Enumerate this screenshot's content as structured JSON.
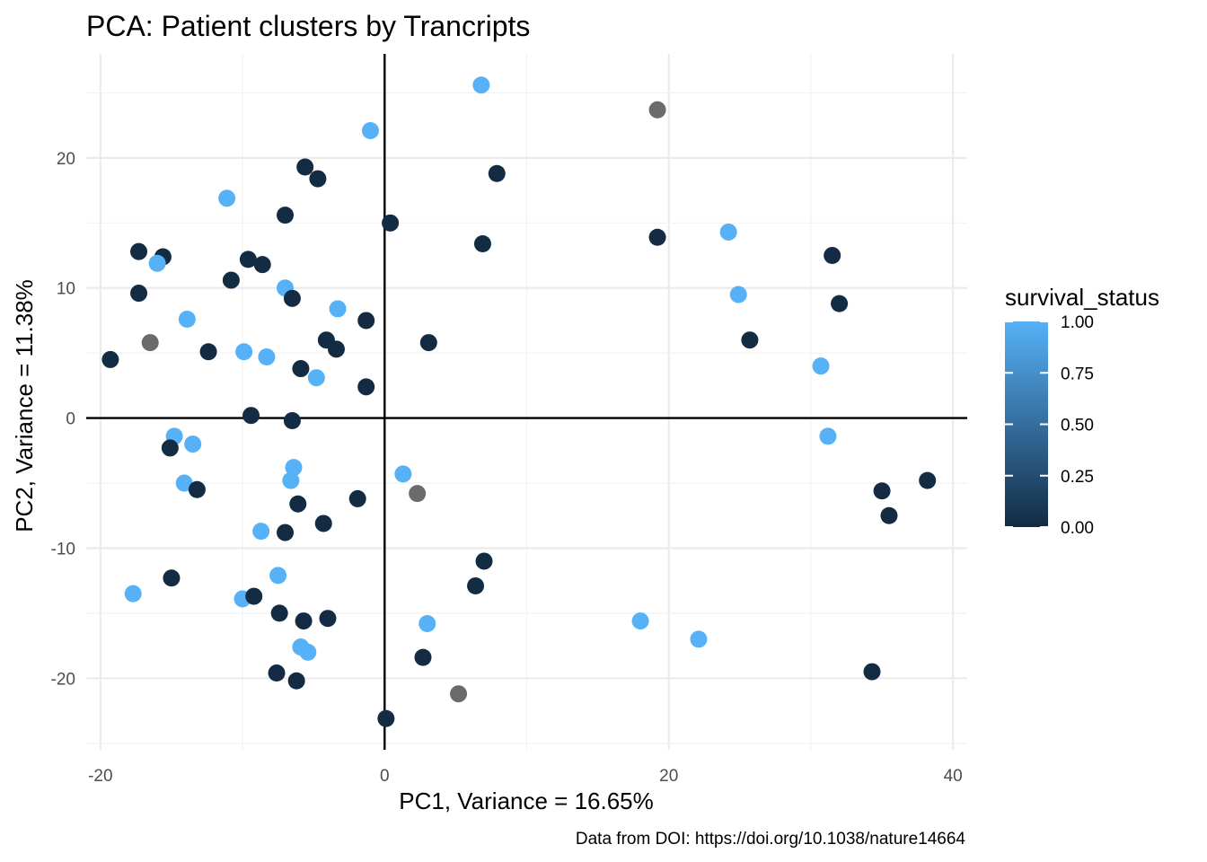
{
  "chart_data": {
    "type": "scatter",
    "title": "PCA: Patient clusters by Trancripts",
    "xlabel": "PC1, Variance = 16.65%",
    "ylabel": "PC2, Variance = 11.38%",
    "caption": "Data from DOI: https://doi.org/10.1038/nature14664",
    "xlim": [
      -21,
      41
    ],
    "ylim": [
      -25.5,
      28
    ],
    "x_ticks": [
      -20,
      0,
      20,
      40
    ],
    "x_tick_labels": [
      "-20",
      "0",
      "20",
      "40"
    ],
    "y_ticks": [
      -20,
      -10,
      0,
      10,
      20
    ],
    "y_tick_labels": [
      "-20",
      "-10",
      "0",
      "10",
      "20"
    ],
    "reference_lines": {
      "x": 0,
      "y": 0
    },
    "grid": true,
    "color_scale": {
      "title": "survival_status",
      "low": "#132b43",
      "high": "#56b1f7",
      "na_color": "#6b6b6b",
      "breaks": [
        0.0,
        0.25,
        0.5,
        0.75,
        1.0
      ],
      "break_labels": [
        "0.00",
        "0.25",
        "0.50",
        "0.75",
        "1.00"
      ],
      "placement": "right"
    },
    "points": [
      {
        "x": 6.8,
        "y": 25.6,
        "status": 1
      },
      {
        "x": 19.2,
        "y": 23.7,
        "status": null
      },
      {
        "x": -1.0,
        "y": 22.1,
        "status": 1
      },
      {
        "x": -5.6,
        "y": 19.3,
        "status": 0
      },
      {
        "x": -4.7,
        "y": 18.4,
        "status": 0
      },
      {
        "x": 7.9,
        "y": 18.8,
        "status": 0
      },
      {
        "x": -11.1,
        "y": 16.9,
        "status": 1
      },
      {
        "x": -7.0,
        "y": 15.6,
        "status": 0
      },
      {
        "x": 0.4,
        "y": 15.0,
        "status": 0
      },
      {
        "x": 6.9,
        "y": 13.4,
        "status": 0
      },
      {
        "x": 19.2,
        "y": 13.9,
        "status": 0
      },
      {
        "x": 24.2,
        "y": 14.3,
        "status": 1
      },
      {
        "x": 31.5,
        "y": 12.5,
        "status": 0
      },
      {
        "x": -17.3,
        "y": 12.8,
        "status": 0
      },
      {
        "x": -15.6,
        "y": 12.4,
        "status": 0
      },
      {
        "x": -16.0,
        "y": 11.9,
        "status": 1
      },
      {
        "x": -9.6,
        "y": 12.2,
        "status": 0
      },
      {
        "x": -8.6,
        "y": 11.8,
        "status": 0
      },
      {
        "x": -10.8,
        "y": 10.6,
        "status": 0
      },
      {
        "x": -7.0,
        "y": 10.0,
        "status": 1
      },
      {
        "x": -6.5,
        "y": 9.2,
        "status": 0
      },
      {
        "x": -17.3,
        "y": 9.6,
        "status": 0
      },
      {
        "x": 24.9,
        "y": 9.5,
        "status": 1
      },
      {
        "x": 32.0,
        "y": 8.8,
        "status": 0
      },
      {
        "x": -3.3,
        "y": 8.4,
        "status": 1
      },
      {
        "x": -1.3,
        "y": 7.5,
        "status": 0
      },
      {
        "x": -13.9,
        "y": 7.6,
        "status": 1
      },
      {
        "x": -16.5,
        "y": 5.8,
        "status": null
      },
      {
        "x": -12.4,
        "y": 5.1,
        "status": 0
      },
      {
        "x": -9.9,
        "y": 5.1,
        "status": 1
      },
      {
        "x": -8.3,
        "y": 4.7,
        "status": 1
      },
      {
        "x": -4.1,
        "y": 6.0,
        "status": 0
      },
      {
        "x": -3.4,
        "y": 5.3,
        "status": 0
      },
      {
        "x": 3.1,
        "y": 5.8,
        "status": 0
      },
      {
        "x": 25.7,
        "y": 6.0,
        "status": 0
      },
      {
        "x": 30.7,
        "y": 4.0,
        "status": 1
      },
      {
        "x": -19.3,
        "y": 4.5,
        "status": 0
      },
      {
        "x": -5.9,
        "y": 3.8,
        "status": 0
      },
      {
        "x": -4.8,
        "y": 3.1,
        "status": 1
      },
      {
        "x": -1.3,
        "y": 2.4,
        "status": 0
      },
      {
        "x": -9.4,
        "y": 0.2,
        "status": 0
      },
      {
        "x": -6.5,
        "y": -0.2,
        "status": 0
      },
      {
        "x": -14.8,
        "y": -1.4,
        "status": 1
      },
      {
        "x": -13.5,
        "y": -2.0,
        "status": 1
      },
      {
        "x": -15.1,
        "y": -2.3,
        "status": 0
      },
      {
        "x": 31.2,
        "y": -1.4,
        "status": 1
      },
      {
        "x": -6.4,
        "y": -3.8,
        "status": 1
      },
      {
        "x": 1.3,
        "y": -4.3,
        "status": 1
      },
      {
        "x": -6.6,
        "y": -4.8,
        "status": 1
      },
      {
        "x": -14.1,
        "y": -5.0,
        "status": 1
      },
      {
        "x": -13.2,
        "y": -5.5,
        "status": 0
      },
      {
        "x": 2.3,
        "y": -5.8,
        "status": null
      },
      {
        "x": -1.9,
        "y": -6.2,
        "status": 0
      },
      {
        "x": -6.1,
        "y": -6.6,
        "status": 0
      },
      {
        "x": 38.2,
        "y": -4.8,
        "status": 0
      },
      {
        "x": 35.0,
        "y": -5.6,
        "status": 0
      },
      {
        "x": 35.5,
        "y": -7.5,
        "status": 0
      },
      {
        "x": -4.3,
        "y": -8.1,
        "status": 0
      },
      {
        "x": -8.7,
        "y": -8.7,
        "status": 1
      },
      {
        "x": -7.0,
        "y": -8.8,
        "status": 0
      },
      {
        "x": 7.0,
        "y": -11.0,
        "status": 0
      },
      {
        "x": 6.4,
        "y": -12.9,
        "status": 0
      },
      {
        "x": -17.7,
        "y": -13.5,
        "status": 1
      },
      {
        "x": -15.0,
        "y": -12.3,
        "status": 0
      },
      {
        "x": -7.5,
        "y": -12.1,
        "status": 1
      },
      {
        "x": -10.0,
        "y": -13.9,
        "status": 1
      },
      {
        "x": -9.2,
        "y": -13.7,
        "status": 0
      },
      {
        "x": -7.4,
        "y": -15.0,
        "status": 0
      },
      {
        "x": -5.7,
        "y": -15.6,
        "status": 0
      },
      {
        "x": -4.0,
        "y": -15.4,
        "status": 0
      },
      {
        "x": 3.0,
        "y": -15.8,
        "status": 1
      },
      {
        "x": 18.0,
        "y": -15.6,
        "status": 1
      },
      {
        "x": 22.1,
        "y": -17.0,
        "status": 1
      },
      {
        "x": -5.9,
        "y": -17.6,
        "status": 1
      },
      {
        "x": -5.4,
        "y": -18.0,
        "status": 1
      },
      {
        "x": 2.7,
        "y": -18.4,
        "status": 0
      },
      {
        "x": -7.6,
        "y": -19.6,
        "status": 0
      },
      {
        "x": -6.2,
        "y": -20.2,
        "status": 0
      },
      {
        "x": 34.3,
        "y": -19.5,
        "status": 0
      },
      {
        "x": 5.2,
        "y": -21.2,
        "status": null
      },
      {
        "x": 0.1,
        "y": -23.1,
        "status": 0
      }
    ]
  }
}
